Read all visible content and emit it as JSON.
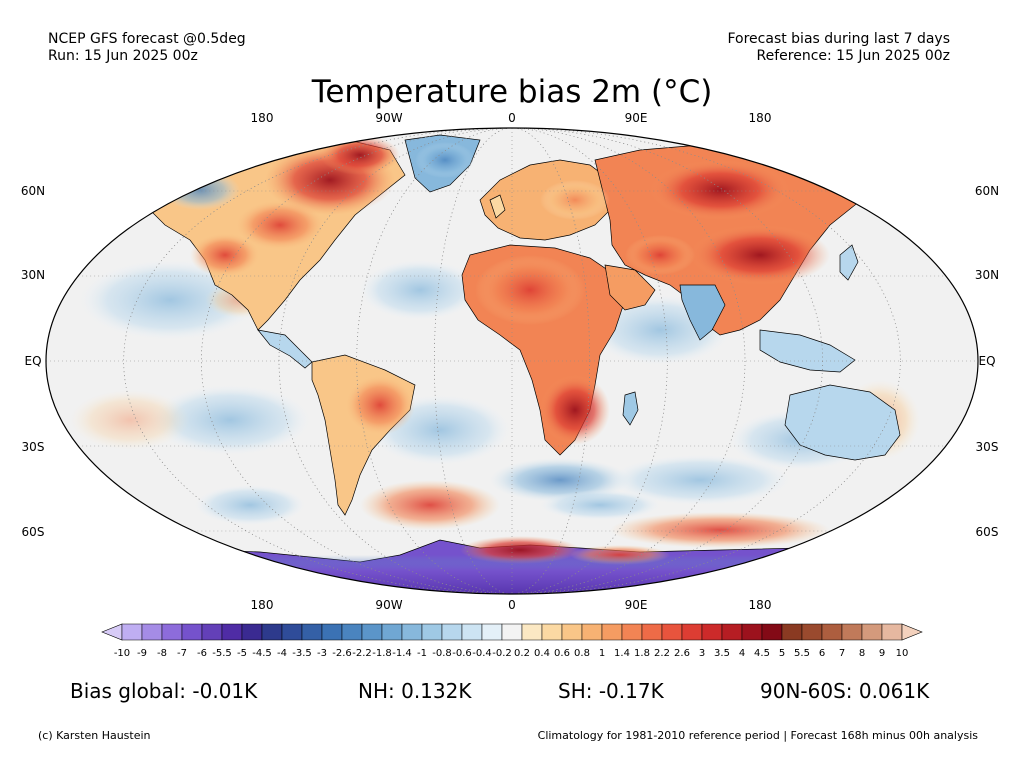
{
  "header": {
    "model_line": "NCEP GFS forecast @0.5deg",
    "run_line": "Run: 15 Jun 2025 00z",
    "bias_window_line": "Forecast bias during last 7 days",
    "reference_line": "Reference: 15 Jun 2025 00z"
  },
  "title": "Temperature bias 2m (°C)",
  "map": {
    "projection": "Robinson",
    "longitude_labels": [
      "180",
      "90W",
      "0",
      "90E",
      "180"
    ],
    "latitude_labels": [
      "60N",
      "30N",
      "EQ",
      "30S",
      "60S"
    ],
    "ocean_color": "#f1f1f1",
    "land_outline_color": "#000000",
    "gridline_color": "#8c8c8c"
  },
  "colorbar": {
    "ticks": [
      "-10",
      "-9",
      "-8",
      "-7",
      "-6",
      "-5.5",
      "-5",
      "-4.5",
      "-4",
      "-3.5",
      "-3",
      "-2.6",
      "-2.2",
      "-1.8",
      "-1.4",
      "-1",
      "-0.8",
      "-0.6",
      "-0.4",
      "-0.2",
      "0.2",
      "0.4",
      "0.6",
      "0.8",
      "1",
      "1.4",
      "1.8",
      "2.2",
      "2.6",
      "3",
      "3.5",
      "4",
      "4.5",
      "5",
      "5.5",
      "6",
      "7",
      "8",
      "9",
      "10"
    ],
    "colors": [
      "#d7cbf7",
      "#bfaef2",
      "#a58ce6",
      "#8d6cdb",
      "#7552cc",
      "#6340b8",
      "#4f2ca5",
      "#3a2a91",
      "#2d3a8c",
      "#2f4c99",
      "#3460a6",
      "#3b72b4",
      "#4a84bf",
      "#5b95c9",
      "#70a7d3",
      "#87b8dc",
      "#9fc9e5",
      "#b7d7ed",
      "#cde4f3",
      "#e4f0f8",
      "#f3f3f3",
      "#fbe8c3",
      "#fbd9a3",
      "#f9c688",
      "#f7b273",
      "#f59c62",
      "#f28454",
      "#ee6b47",
      "#e8543d",
      "#dd3d33",
      "#cc2a2a",
      "#b61d23",
      "#9c121d",
      "#830a16",
      "#8a3a22",
      "#9a4a2e",
      "#ad5e3f",
      "#c07a5a",
      "#d49a7c",
      "#e6b8a0",
      "#f3d1bd"
    ]
  },
  "stats": {
    "global": "Bias global: -0.01K",
    "nh": "NH: 0.132K",
    "sh": "SH: -0.17K",
    "polar": "90N-60S: 0.061K"
  },
  "footer": {
    "credit": "(c) Karsten Haustein",
    "note": "Climatology for 1981-2010 reference period | Forecast 168h minus 00h analysis"
  }
}
